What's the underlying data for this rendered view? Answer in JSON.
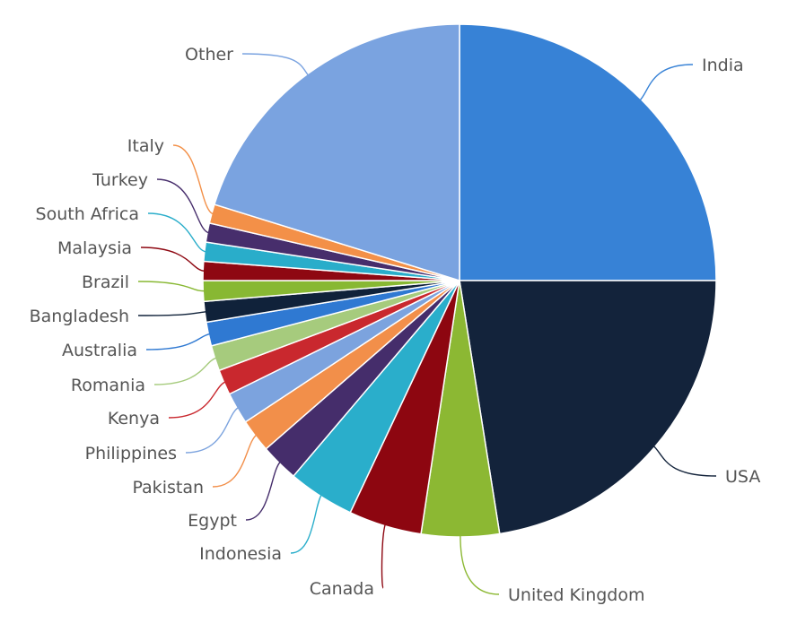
{
  "chart_data": {
    "type": "pie",
    "title": "",
    "legend": false,
    "slices": [
      {
        "label": "India",
        "value": 25.0,
        "color": "#3782d6"
      },
      {
        "label": "USA",
        "value": 22.5,
        "color": "#13233b"
      },
      {
        "label": "United Kingdom",
        "value": 4.9,
        "color": "#8cb833"
      },
      {
        "label": "Canada",
        "value": 4.6,
        "color": "#8d0610"
      },
      {
        "label": "Indonesia",
        "value": 4.2,
        "color": "#2aaecb"
      },
      {
        "label": "Egypt",
        "value": 2.4,
        "color": "#452d6b"
      },
      {
        "label": "Pakistan",
        "value": 2.1,
        "color": "#f28f4a"
      },
      {
        "label": "Philippines",
        "value": 2.0,
        "color": "#7ca3de"
      },
      {
        "label": "Kenya",
        "value": 1.6,
        "color": "#c9282e"
      },
      {
        "label": "Romania",
        "value": 1.6,
        "color": "#a6cb7d"
      },
      {
        "label": "Australia",
        "value": 1.5,
        "color": "#2f79d2"
      },
      {
        "label": "Bangladesh",
        "value": 1.3,
        "color": "#10223a"
      },
      {
        "label": "Brazil",
        "value": 1.3,
        "color": "#88b833"
      },
      {
        "label": "Malaysia",
        "value": 1.2,
        "color": "#8e0812"
      },
      {
        "label": "South Africa",
        "value": 1.2,
        "color": "#29adca"
      },
      {
        "label": "Turkey",
        "value": 1.2,
        "color": "#472e6c"
      },
      {
        "label": "Italy",
        "value": 1.2,
        "color": "#f39048"
      },
      {
        "label": "Other",
        "value": 20.2,
        "color": "#7aa3e0"
      }
    ]
  }
}
